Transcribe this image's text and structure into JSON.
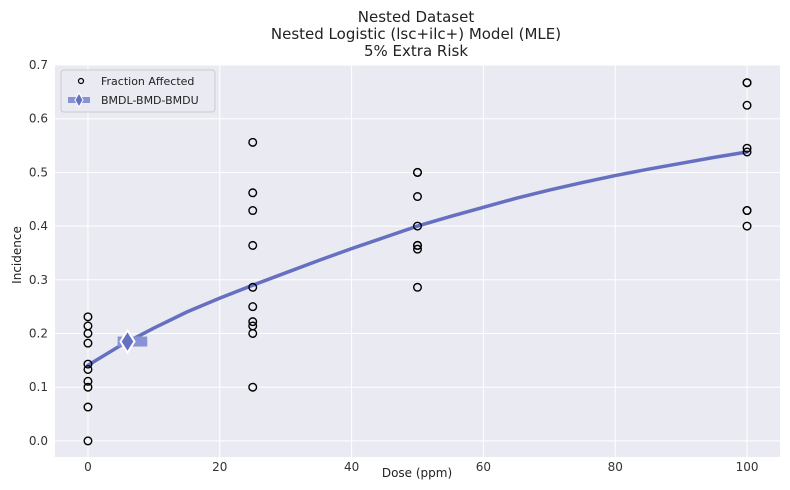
{
  "chart_data": {
    "type": "scatter",
    "title": [
      "Nested Dataset",
      "Nested Logistic (lsc+ilc+) Model (MLE)",
      "5% Extra Risk"
    ],
    "xlabel": "Dose (ppm)",
    "ylabel": "Incidence",
    "xlim": [
      -5,
      105
    ],
    "ylim": [
      -0.03,
      0.7
    ],
    "xticks": [
      0,
      20,
      40,
      60,
      80,
      100
    ],
    "yticks": [
      0.0,
      0.1,
      0.2,
      0.3,
      0.4,
      0.5,
      0.6,
      0.7
    ],
    "xtick_labels": [
      "0",
      "20",
      "40",
      "60",
      "80",
      "100"
    ],
    "ytick_labels": [
      "0.0",
      "0.1",
      "0.2",
      "0.3",
      "0.4",
      "0.5",
      "0.6",
      "0.7"
    ],
    "grid": true,
    "legend": {
      "placement": "top-left",
      "entries": [
        "Fraction Affected",
        "BMDL-BMD-BMDU"
      ]
    },
    "series": [
      {
        "name": "Fraction Affected",
        "kind": "points",
        "points": [
          [
            0,
            0.0
          ],
          [
            0,
            0.063
          ],
          [
            0,
            0.1
          ],
          [
            0,
            0.111
          ],
          [
            0,
            0.133
          ],
          [
            0,
            0.143
          ],
          [
            0,
            0.182
          ],
          [
            0,
            0.2
          ],
          [
            0,
            0.214
          ],
          [
            0,
            0.231
          ],
          [
            25,
            0.1
          ],
          [
            25,
            0.2
          ],
          [
            25,
            0.214
          ],
          [
            25,
            0.222
          ],
          [
            25,
            0.25
          ],
          [
            25,
            0.286
          ],
          [
            25,
            0.364
          ],
          [
            25,
            0.429
          ],
          [
            25,
            0.462
          ],
          [
            25,
            0.556
          ],
          [
            50,
            0.286
          ],
          [
            50,
            0.357
          ],
          [
            50,
            0.364
          ],
          [
            50,
            0.364
          ],
          [
            50,
            0.4
          ],
          [
            50,
            0.455
          ],
          [
            50,
            0.5
          ],
          [
            50,
            0.5
          ],
          [
            100,
            0.4
          ],
          [
            100,
            0.429
          ],
          [
            100,
            0.429
          ],
          [
            100,
            0.538
          ],
          [
            100,
            0.545
          ],
          [
            100,
            0.625
          ],
          [
            100,
            0.667
          ],
          [
            100,
            0.667
          ]
        ]
      },
      {
        "name": "",
        "kind": "curve",
        "x": [
          0,
          5,
          10,
          15,
          20,
          25,
          30,
          35,
          40,
          45,
          50,
          55,
          60,
          65,
          70,
          75,
          80,
          85,
          90,
          95,
          100
        ],
        "y": [
          0.141,
          0.178,
          0.21,
          0.24,
          0.266,
          0.29,
          0.313,
          0.336,
          0.358,
          0.379,
          0.4,
          0.418,
          0.435,
          0.452,
          0.467,
          0.481,
          0.494,
          0.506,
          0.517,
          0.528,
          0.538
        ],
        "color": "#6670c0"
      },
      {
        "name": "BMDL-BMD-BMDU",
        "kind": "benchmark",
        "bmdl": 4.5,
        "bmd": 6.0,
        "bmdu": 9.0,
        "y": 0.185,
        "color": "#8a92d6"
      }
    ]
  }
}
